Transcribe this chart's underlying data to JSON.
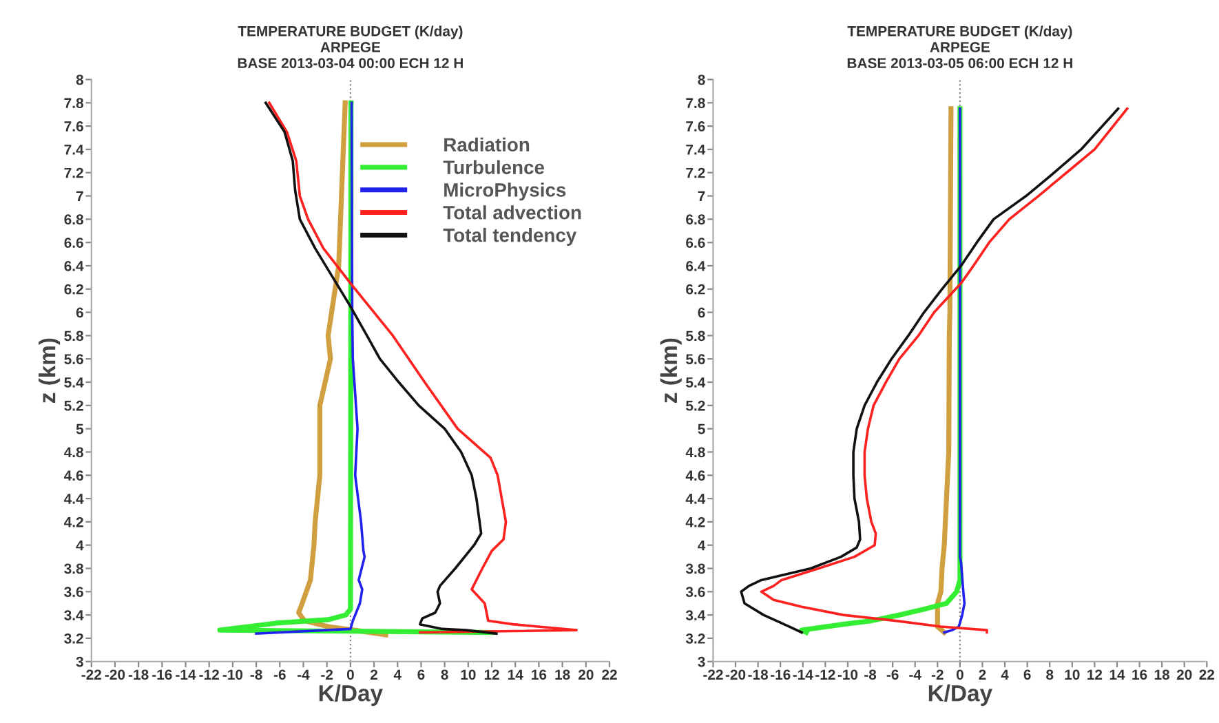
{
  "chart_data": [
    {
      "type": "line",
      "title": "TEMPERATURE BUDGET (K/day)\nARPEGE\nBASE 2013-03-04 00:00 ECH 12 H",
      "xlabel": "K/Day",
      "ylabel": "z (km)",
      "xlim": [
        -22,
        22
      ],
      "ylim": [
        3,
        8
      ],
      "xticks": [
        -22,
        -20,
        -18,
        -16,
        -14,
        -12,
        -10,
        -8,
        -6,
        -4,
        -2,
        0,
        2,
        4,
        6,
        8,
        10,
        12,
        14,
        16,
        18,
        20,
        22
      ],
      "yticks": [
        3,
        3.2,
        3.4,
        3.6,
        3.8,
        4,
        4.2,
        4.4,
        4.6,
        4.8,
        5,
        5.2,
        5.4,
        5.6,
        5.8,
        6,
        6.2,
        6.4,
        6.6,
        6.8,
        7,
        7.2,
        7.4,
        7.6,
        7.8,
        8
      ],
      "grid": false,
      "legend": "top right",
      "marker": "none",
      "line_style": "solid",
      "ref_lines": [
        {
          "axis": "x",
          "value": 0,
          "color": "#888888",
          "line_style": "dotted"
        }
      ],
      "series": [
        {
          "name": "Radiation",
          "color": "#d0a040",
          "x": [
            -0.45,
            -1.0,
            -1.9,
            -1.7,
            -2.6,
            -2.6,
            -2.6,
            -3.0,
            -3.1,
            -3.4,
            -4.1,
            -4.4,
            -3.9,
            -1.9,
            0.3,
            3.0
          ],
          "values": [
            7.8,
            6.4,
            5.8,
            5.6,
            5.2,
            5.0,
            4.6,
            4.2,
            4.0,
            3.7,
            3.5,
            3.42,
            3.35,
            3.3,
            3.27,
            3.23
          ]
        },
        {
          "name": "Turbulence",
          "color": "#33ee33",
          "x": [
            0.05,
            0.0,
            -0.4,
            -1.9,
            -6.3,
            -11.1,
            12.0
          ],
          "values": [
            7.8,
            3.45,
            3.4,
            3.36,
            3.33,
            3.27,
            3.25
          ]
        },
        {
          "name": "MicroPhysics",
          "color": "#2222ee",
          "x": [
            0.1,
            0.15,
            0.2,
            0.6,
            0.4,
            0.9,
            1.1,
            1.2,
            0.7,
            1.0,
            0.8,
            0.2,
            0.0,
            -8.0
          ],
          "values": [
            7.8,
            6.0,
            5.6,
            5.0,
            4.6,
            4.2,
            3.95,
            3.9,
            3.7,
            3.62,
            3.5,
            3.35,
            3.28,
            3.24
          ]
        },
        {
          "name": "Total advection",
          "color": "#ff2020",
          "x": [
            -6.9,
            -5.4,
            -4.6,
            -4.3,
            -3.6,
            -2.3,
            0.0,
            3.6,
            6.3,
            9.1,
            11.9,
            12.5,
            13.2,
            13.0,
            12.0,
            11.2,
            10.3,
            11.4,
            11.5,
            11.7,
            13.8,
            19.2,
            5.9
          ],
          "values": [
            7.8,
            7.55,
            7.3,
            7.0,
            6.8,
            6.55,
            6.25,
            5.8,
            5.4,
            5.0,
            4.75,
            4.6,
            4.2,
            4.05,
            3.95,
            3.8,
            3.62,
            3.5,
            3.45,
            3.35,
            3.32,
            3.27,
            3.25
          ]
        },
        {
          "name": "Total tendency",
          "color": "#111111",
          "x": [
            -7.2,
            -5.6,
            -4.9,
            -4.7,
            -4.3,
            -3.0,
            -1.5,
            0.0,
            1.4,
            2.5,
            4.1,
            5.8,
            8.0,
            9.4,
            10.3,
            10.7,
            11.1,
            10.5,
            8.9,
            7.6,
            7.4,
            7.6,
            7.2,
            6.1,
            5.9,
            7.8,
            9.8,
            12.4
          ],
          "values": [
            7.8,
            7.55,
            7.3,
            7.05,
            6.8,
            6.55,
            6.3,
            6.05,
            5.8,
            5.6,
            5.4,
            5.2,
            5.0,
            4.8,
            4.6,
            4.4,
            4.1,
            4.0,
            3.8,
            3.65,
            3.6,
            3.5,
            3.42,
            3.37,
            3.32,
            3.28,
            3.27,
            3.24
          ]
        }
      ]
    },
    {
      "type": "line",
      "title": "TEMPERATURE BUDGET (K/day)\nARPEGE\nBASE 2013-03-05 06:00 ECH 12 H",
      "xlabel": "K/Day",
      "ylabel": "z (km)",
      "xlim": [
        -22,
        22
      ],
      "ylim": [
        3,
        8
      ],
      "xticks": [
        -22,
        -20,
        -18,
        -16,
        -14,
        -12,
        -10,
        -8,
        -6,
        -4,
        -2,
        0,
        2,
        4,
        6,
        8,
        10,
        12,
        14,
        16,
        18,
        20,
        22
      ],
      "yticks": [
        3,
        3.2,
        3.4,
        3.6,
        3.8,
        4,
        4.2,
        4.4,
        4.6,
        4.8,
        5,
        5.2,
        5.4,
        5.6,
        5.8,
        6,
        6.2,
        6.4,
        6.6,
        6.8,
        7,
        7.2,
        7.4,
        7.6,
        7.8,
        8
      ],
      "grid": false,
      "marker": "none",
      "line_style": "solid",
      "ref_lines": [
        {
          "axis": "x",
          "value": 0,
          "color": "#888888",
          "line_style": "dotted"
        }
      ],
      "series": [
        {
          "color": "#d0a040",
          "x": [
            -0.8,
            -0.9,
            -0.95,
            -1.0,
            -1.4,
            -1.6,
            -1.7,
            -2.0,
            -2.0,
            -1.4
          ],
          "values": [
            7.75,
            6.0,
            5.8,
            4.8,
            4.0,
            3.8,
            3.6,
            3.5,
            3.3,
            3.25
          ]
        },
        {
          "color": "#33ee33",
          "x": [
            0.0,
            0.0,
            -0.3,
            -1.2,
            -3.2,
            -5.4,
            -7.9,
            -10.4,
            -14.1,
            -13.7
          ],
          "values": [
            7.75,
            3.7,
            3.6,
            3.5,
            3.45,
            3.4,
            3.35,
            3.32,
            3.27,
            3.25
          ]
        },
        {
          "color": "#2222ee",
          "x": [
            0.0,
            0.0,
            0.1,
            0.3,
            0.4,
            0.2,
            -0.1,
            -0.7,
            -1.4
          ],
          "values": [
            7.75,
            3.9,
            3.85,
            3.6,
            3.5,
            3.4,
            3.3,
            3.27,
            3.25
          ]
        },
        {
          "color": "#ff2020",
          "x": [
            14.9,
            12.0,
            9.5,
            7.0,
            4.4,
            2.6,
            1.2,
            0.1,
            -2.3,
            -3.7,
            -5.4,
            -6.6,
            -7.7,
            -8.2,
            -8.5,
            -8.5,
            -8.3,
            -7.9,
            -7.5,
            -7.6,
            -9.4,
            -12.6,
            -15.9,
            -16.6,
            -17.7,
            -16.6,
            -14.1,
            -10.4,
            -5.7,
            -1.7,
            2.4,
            2.4
          ],
          "values": [
            7.75,
            7.4,
            7.2,
            7.0,
            6.8,
            6.6,
            6.4,
            6.25,
            6.0,
            5.8,
            5.6,
            5.4,
            5.2,
            5.0,
            4.8,
            4.6,
            4.4,
            4.2,
            4.1,
            4.0,
            3.9,
            3.8,
            3.7,
            3.65,
            3.6,
            3.53,
            3.47,
            3.4,
            3.35,
            3.3,
            3.27,
            3.25
          ]
        },
        {
          "color": "#111111",
          "x": [
            14.1,
            10.8,
            8.4,
            5.9,
            3.0,
            1.5,
            0.1,
            -1.6,
            -3.2,
            -4.6,
            -6.1,
            -7.4,
            -8.5,
            -9.2,
            -9.5,
            -9.5,
            -9.4,
            -9.0,
            -8.9,
            -9.2,
            -10.6,
            -13.3,
            -17.7,
            -18.8,
            -19.5,
            -19.2,
            -17.5,
            -15.2,
            -14.1
          ],
          "values": [
            7.75,
            7.4,
            7.2,
            7.0,
            6.8,
            6.6,
            6.4,
            6.2,
            6.0,
            5.8,
            5.6,
            5.4,
            5.2,
            5.0,
            4.8,
            4.6,
            4.4,
            4.2,
            4.05,
            3.98,
            3.9,
            3.8,
            3.7,
            3.65,
            3.6,
            3.5,
            3.4,
            3.3,
            3.25
          ]
        }
      ]
    }
  ]
}
